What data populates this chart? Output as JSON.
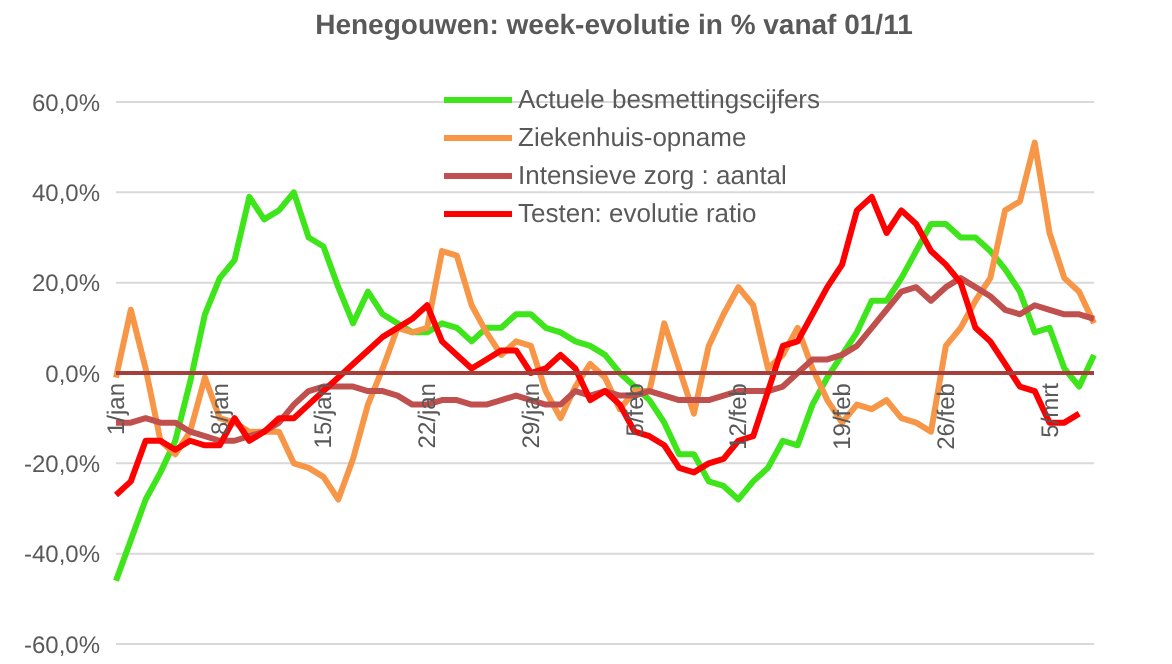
{
  "chart_data": {
    "type": "line",
    "title": "Henegouwen: week-evolutie in % vanaf 01/11",
    "categories": [
      "1/jan",
      null,
      null,
      null,
      null,
      null,
      null,
      "8/jan",
      null,
      null,
      null,
      null,
      null,
      null,
      "15/jan",
      null,
      null,
      null,
      null,
      null,
      null,
      "22/jan",
      null,
      null,
      null,
      null,
      null,
      null,
      "29/jan",
      null,
      null,
      null,
      null,
      null,
      null,
      "5/feb",
      null,
      null,
      null,
      null,
      null,
      null,
      "12/feb",
      null,
      null,
      null,
      null,
      null,
      null,
      "19/feb",
      null,
      null,
      null,
      null,
      null,
      null,
      "26/feb",
      null,
      null,
      null,
      null,
      null,
      null,
      "5/mrt",
      null,
      null,
      null
    ],
    "series": [
      {
        "name": "Actuele besmettingscijfers",
        "color": "#3de51a",
        "values": [
          -46,
          -37,
          -28,
          -22,
          -15,
          -2,
          13,
          21,
          25,
          39,
          34,
          36,
          40,
          30,
          28,
          19,
          11,
          18,
          13,
          11,
          9,
          9,
          11,
          10,
          7,
          10,
          10,
          13,
          13,
          10,
          9,
          7,
          6,
          4,
          0,
          -3,
          -6,
          -11,
          -18,
          -18,
          -24,
          -25,
          -28,
          -24,
          -21,
          -15,
          -16,
          -7,
          -1,
          4,
          9,
          16,
          16,
          21,
          27,
          33,
          33,
          30,
          30,
          27,
          23,
          18,
          9,
          10,
          1,
          -3,
          4
        ]
      },
      {
        "name": "Ziekenhuis-opname",
        "color": "#f79646",
        "values": [
          -1,
          14,
          1,
          -15,
          -18,
          -13,
          -1,
          -10,
          -11,
          -13,
          -13,
          -13,
          -20,
          -21,
          -23,
          -28,
          -19,
          -7,
          1,
          10,
          9,
          10,
          27,
          26,
          15,
          9,
          4,
          7,
          6,
          -4,
          -10,
          -3,
          2,
          -1,
          -8,
          -4,
          -4,
          11,
          1,
          -9,
          6,
          13,
          19,
          15,
          1,
          4,
          10,
          1,
          -6,
          -11,
          -7,
          -8,
          -6,
          -10,
          -11,
          -13,
          6,
          10,
          16,
          21,
          36,
          38,
          51,
          31,
          21,
          18,
          11
        ]
      },
      {
        "name": "Intensieve zorg : aantal",
        "color": "#c0504d",
        "values": [
          -11,
          -11,
          -10,
          -11,
          -11,
          -13,
          -14,
          -15,
          -15,
          -14,
          -13,
          -11,
          -7,
          -4,
          -3,
          -3,
          -3,
          -4,
          -4,
          -5,
          -7,
          -7,
          -6,
          -6,
          -7,
          -7,
          -6,
          -5,
          -6,
          -7,
          -7,
          -4,
          -5,
          -4,
          -5,
          -5,
          -4,
          -5,
          -6,
          -6,
          -6,
          -5,
          -4,
          -4,
          -4,
          -3,
          0,
          3,
          3,
          4,
          6,
          10,
          14,
          18,
          19,
          16,
          19,
          21,
          19,
          17,
          14,
          13,
          15,
          14,
          13,
          13,
          12
        ]
      },
      {
        "name": "Testen: evolutie ratio",
        "color": "#ff0000",
        "values": [
          -27,
          -24,
          -15,
          -15,
          -17,
          -15,
          -16,
          -16,
          -10,
          -15,
          -13,
          -10,
          -10,
          -7,
          -4,
          -1,
          2,
          5,
          8,
          10,
          12,
          15,
          7,
          4,
          1,
          3,
          5,
          5,
          0,
          1,
          4,
          1,
          -6,
          -4,
          -7,
          -13,
          -14,
          -16,
          -21,
          -22,
          -20,
          -19,
          -15,
          -14,
          -4,
          6,
          7,
          13,
          19,
          24,
          36,
          39,
          31,
          36,
          33,
          27,
          24,
          20,
          10,
          7,
          2,
          -3,
          -4,
          -11,
          -11,
          -9,
          null
        ]
      }
    ],
    "ylim": [
      -60,
      60
    ],
    "yticks": [
      {
        "value": -60,
        "label": "-60,0%"
      },
      {
        "value": -40,
        "label": "-40,0%"
      },
      {
        "value": -20,
        "label": "-20,0%"
      },
      {
        "value": 0,
        "label": "0,0%"
      },
      {
        "value": 20,
        "label": "20,0%"
      },
      {
        "value": 40,
        "label": "40,0%"
      },
      {
        "value": 60,
        "label": "60,0%"
      }
    ],
    "grid": "y",
    "legend": "top right",
    "marker": "none",
    "line_style": "solid"
  }
}
